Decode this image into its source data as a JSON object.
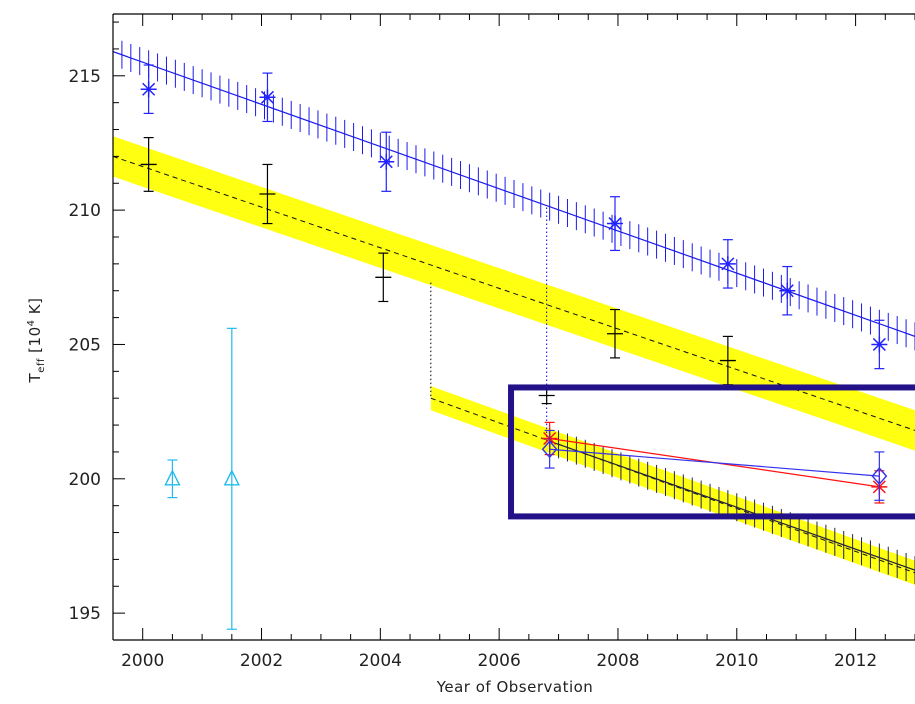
{
  "chart_data": {
    "type": "scatter",
    "xlabel": "Year of Observation",
    "ylabel_main": "T",
    "ylabel_sub": "eff",
    "ylabel_unit_open": " [10",
    "ylabel_unit_exp": "4",
    "ylabel_unit_close": " K]",
    "xlim": [
      1999.5,
      2013.0
    ],
    "ylim": [
      194.0,
      217.3
    ],
    "x_ticks": [
      2000,
      2002,
      2004,
      2006,
      2008,
      2010,
      2012
    ],
    "y_ticks": [
      195,
      200,
      205,
      210,
      215
    ],
    "series": [
      {
        "marker": "asterisk",
        "color": "#2222ff",
        "points": [
          {
            "x": 2000.1,
            "y": 214.5,
            "err": 0.9
          },
          {
            "x": 2002.1,
            "y": 214.2,
            "err": 0.9
          },
          {
            "x": 2004.1,
            "y": 211.8,
            "err": 1.1
          },
          {
            "x": 2007.95,
            "y": 209.5,
            "err": 1.0
          },
          {
            "x": 2009.85,
            "y": 208.0,
            "err": 0.9
          },
          {
            "x": 2010.85,
            "y": 207.0,
            "err": 0.9
          },
          {
            "x": 2012.4,
            "y": 205.0,
            "err": 0.9
          }
        ]
      },
      {
        "marker": "cross",
        "color": "#000000",
        "points": [
          {
            "x": 2000.1,
            "y": 211.7,
            "err": 1.0
          },
          {
            "x": 2002.1,
            "y": 210.6,
            "err": 1.1
          },
          {
            "x": 2004.05,
            "y": 207.5,
            "err": 0.9
          },
          {
            "x": 2006.8,
            "y": 203.1,
            "err": 0.3
          },
          {
            "x": 2007.95,
            "y": 205.4,
            "err": 0.9
          },
          {
            "x": 2009.85,
            "y": 204.4,
            "err": 0.9
          }
        ]
      },
      {
        "marker": "triangle",
        "color": "#22bbee",
        "points": [
          {
            "x": 2000.5,
            "y": 200.0,
            "err": 0.7
          },
          {
            "x": 2001.5,
            "y": 200.0,
            "err": 5.6
          }
        ]
      },
      {
        "marker": "asterisk",
        "color": "#ff1111",
        "connect": true,
        "points": [
          {
            "x": 2006.85,
            "y": 201.5,
            "err": 0.6
          },
          {
            "x": 2012.4,
            "y": 199.7,
            "err": 0.6
          }
        ]
      },
      {
        "marker": "diamond",
        "color": "#3333ee",
        "connect": true,
        "points": [
          {
            "x": 2006.85,
            "y": 201.1,
            "err": 0.7
          },
          {
            "x": 2012.4,
            "y": 200.1,
            "err": 0.9
          }
        ]
      }
    ],
    "trend_bands": [
      {
        "x_start": 1999.5,
        "x_end": 2013.0,
        "y_start": 212.0,
        "y_end": 201.8,
        "half_width": 0.75,
        "color": "#ffff11"
      },
      {
        "x_start": 2004.85,
        "x_end": 2013.0,
        "y_start": 203.0,
        "y_end": 196.5,
        "half_width": 0.45,
        "color": "#ffff11"
      }
    ],
    "hatched_tracks": [
      {
        "x_start": 1999.5,
        "x_end": 2013.0,
        "y_start": 215.9,
        "y_end": 205.3,
        "color": "#1a1aee"
      },
      {
        "x_start": 2006.85,
        "x_end": 2013.0,
        "y_start": 201.4,
        "y_end": 196.6,
        "color": "#222244"
      }
    ],
    "dotted_connectors": [
      {
        "x": 2004.85,
        "y_from": 207.3,
        "y_to": 203.0,
        "color": "#000000"
      },
      {
        "x": 2006.8,
        "y_from": 210.1,
        "y_to": 201.3,
        "color": "#0000cc"
      }
    ],
    "highlight_box": {
      "x_min": 2006.2,
      "x_max": 2013.0,
      "y_min": 198.6,
      "y_max": 203.4,
      "color": "#221188"
    }
  }
}
